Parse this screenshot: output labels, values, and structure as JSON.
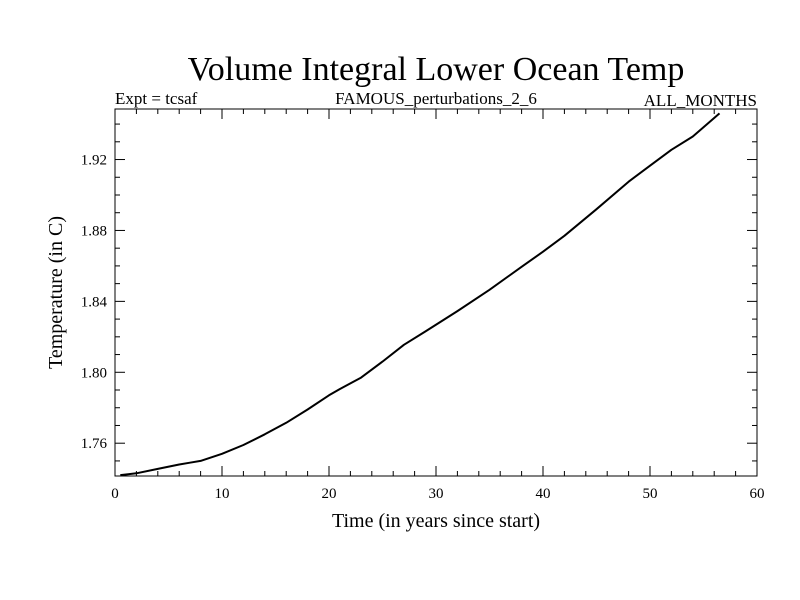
{
  "chart_data": {
    "type": "line",
    "title": "Volume Integral Lower Ocean Temp",
    "subtitle_left": "Expt = tcsaf",
    "subtitle_center": "FAMOUS_perturbations_2_6",
    "subtitle_right": "ALL_MONTHS",
    "xlabel": "Time (in years since start)",
    "ylabel": "Temperature (in C)",
    "xlim": [
      0,
      60
    ],
    "ylim": [
      1.7415,
      1.9485
    ],
    "x_ticks": [
      0,
      10,
      20,
      30,
      40,
      50,
      60
    ],
    "y_ticks": [
      1.76,
      1.8,
      1.84,
      1.88,
      1.92
    ],
    "x_tick_labels": [
      "0",
      "10",
      "20",
      "30",
      "40",
      "50",
      "60"
    ],
    "y_tick_labels": [
      "1.76",
      "1.80",
      "1.84",
      "1.88",
      "1.92"
    ],
    "grid": false,
    "series": [
      {
        "name": "Temperature",
        "x": [
          0.5,
          2,
          4,
          6,
          7,
          8,
          10,
          12,
          14,
          16,
          18,
          20,
          21,
          23,
          25,
          27,
          29,
          32,
          35,
          38,
          40,
          42,
          45,
          48,
          50,
          52,
          54,
          56.5
        ],
        "y": [
          1.742,
          1.743,
          1.7455,
          1.748,
          1.749,
          1.75,
          1.754,
          1.759,
          1.765,
          1.7715,
          1.779,
          1.787,
          1.7905,
          1.797,
          1.806,
          1.8155,
          1.823,
          1.8345,
          1.8465,
          1.8595,
          1.868,
          1.877,
          1.892,
          1.9075,
          1.9165,
          1.9255,
          1.933,
          1.946
        ]
      }
    ]
  }
}
